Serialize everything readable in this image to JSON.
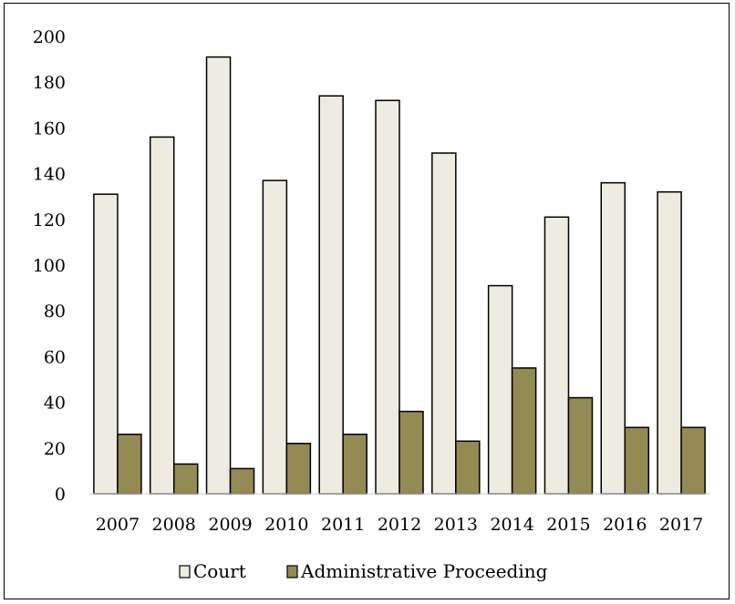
{
  "chart_data": {
    "type": "bar",
    "categories": [
      "2007",
      "2008",
      "2009",
      "2010",
      "2011",
      "2012",
      "2013",
      "2014",
      "2015",
      "2016",
      "2017"
    ],
    "series": [
      {
        "name": "Court",
        "values": [
          131,
          156,
          191,
          137,
          174,
          172,
          149,
          91,
          121,
          136,
          132
        ],
        "color": "#eeece1"
      },
      {
        "name": "Administrative Proceeding",
        "values": [
          26,
          13,
          11,
          22,
          26,
          36,
          23,
          55,
          42,
          29,
          29
        ],
        "color": "#948a54"
      }
    ],
    "y_ticks": [
      "0",
      "20",
      "40",
      "60",
      "80",
      "100",
      "120",
      "140",
      "160",
      "180",
      "200"
    ],
    "ylim": [
      0,
      200
    ],
    "grid": false,
    "legend_position": "bottom",
    "title": "",
    "xlabel": "",
    "ylabel": ""
  }
}
